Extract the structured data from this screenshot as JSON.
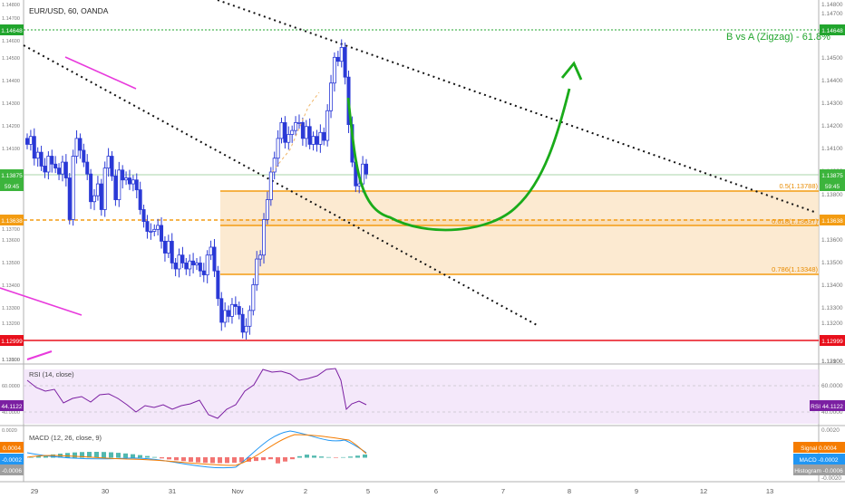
{
  "main": {
    "symbol": "EUR/USD, 60, OANDA",
    "annotation": "B vs A (Zigzag) - 61.8%",
    "fib_levels": [
      "0.5(1.13788)",
      "0.618(1.13637)",
      "0.786(1.13348)"
    ]
  },
  "right_axis": {
    "ticks": [
      "1.14800",
      "1.14700",
      "1.14500",
      "1.14400",
      "1.14300",
      "1.14200",
      "1.14100",
      "1.14000",
      "1.13800",
      "1.13700",
      "1.13600",
      "1.13500",
      "1.13400",
      "1.13300",
      "1.13200",
      "1.13100",
      "1.12900"
    ],
    "badges": [
      {
        "label": "1.14648",
        "color": "#21a52d"
      },
      {
        "label": "1.13875",
        "color": "#3cb43c"
      },
      {
        "label": "59:45",
        "color": "#3cb43c"
      },
      {
        "label": "1.13638",
        "color": "#f39c12"
      },
      {
        "label": "1.12999",
        "color": "#e8101c"
      }
    ]
  },
  "left_axis": {
    "ticks": [
      "1.14800",
      "1.14700",
      "1.14600",
      "1.14500",
      "1.14400",
      "1.14300",
      "1.14200",
      "1.14100",
      "1.14000",
      "1.13800",
      "1.13700",
      "1.13600",
      "1.13500",
      "1.13400",
      "1.13300",
      "1.13200",
      "1.13100",
      "1.12900"
    ],
    "badges": [
      {
        "label": "1.14648",
        "color": "#21a52d"
      },
      {
        "label": "1.13875",
        "color": "#3cb43c"
      },
      {
        "label": "59:45",
        "color": "#3cb43c"
      },
      {
        "label": "1.13638",
        "color": "#f39c12"
      },
      {
        "label": "1.12999",
        "color": "#e8101c"
      }
    ]
  },
  "rsi": {
    "title": "RSI (14, close)",
    "ticks": [
      "60.0000",
      "40.0000"
    ],
    "value": "44.1122",
    "right_label": "RSI",
    "right_value": "44.1122",
    "color": "#7b1fa2"
  },
  "macd": {
    "title": "MACD (12, 26, close, 9)",
    "tick": "0.0020",
    "left_values": [
      {
        "label": "0.0004",
        "color": "#f57c00"
      },
      {
        "label": "-0.0002",
        "color": "#2196f3"
      },
      {
        "label": "-0.0006",
        "color": "#9e9e9e"
      }
    ],
    "right_labels": [
      {
        "name": "Signal",
        "value": "0.0004",
        "color": "#f57c00"
      },
      {
        "name": "MACD",
        "value": "-0.0002",
        "color": "#2196f3"
      },
      {
        "name": "Histogram",
        "value": "-0.0006",
        "color": "#9e9e9e"
      }
    ],
    "right_ticks": [
      "0.0020",
      "-0.0020"
    ]
  },
  "time_axis": {
    "labels": [
      "29",
      "30",
      "31",
      "Nov",
      "2",
      "5",
      "6",
      "7",
      "8",
      "9",
      "12",
      "13"
    ]
  },
  "chart_data": {
    "type": "candlestick",
    "interval": "60",
    "price_range": [
      1.129,
      1.1475
    ],
    "candle_color": "#2a39d6",
    "closes": [
      1.1402,
      1.1406,
      1.1395,
      1.1398,
      1.1391,
      1.1388,
      1.1396,
      1.1392,
      1.139,
      1.1387,
      1.1393,
      1.1385,
      1.1364,
      1.1396,
      1.1405,
      1.1399,
      1.1393,
      1.1387,
      1.1373,
      1.1376,
      1.1382,
      1.1369,
      1.139,
      1.1396,
      1.1386,
      1.1374,
      1.1389,
      1.1384,
      1.1385,
      1.1382,
      1.1384,
      1.1379,
      1.1369,
      1.1363,
      1.1358,
      1.1358,
      1.1359,
      1.1361,
      1.1353,
      1.1347,
      1.1353,
      1.1342,
      1.1339,
      1.1346,
      1.1342,
      1.1339,
      1.1343,
      1.1341,
      1.1342,
      1.1338,
      1.1336,
      1.1346,
      1.135,
      1.1338,
      1.1324,
      1.1312,
      1.1318,
      1.1315,
      1.1321,
      1.132,
      1.1316,
      1.1307,
      1.131,
      1.1318,
      1.1331,
      1.1344,
      1.1346,
      1.1364,
      1.1374,
      1.1388,
      1.1395,
      1.1405,
      1.1413,
      1.1403,
      1.1407,
      1.1409,
      1.1413,
      1.1413,
      1.1405,
      1.1411,
      1.1402,
      1.1406,
      1.1402,
      1.1408,
      1.1404,
      1.1419,
      1.1433,
      1.1446,
      1.1444,
      1.1451,
      1.1436,
      1.1412,
      1.1393,
      1.1381,
      1.1382,
      1.1392,
      1.1387
    ]
  }
}
